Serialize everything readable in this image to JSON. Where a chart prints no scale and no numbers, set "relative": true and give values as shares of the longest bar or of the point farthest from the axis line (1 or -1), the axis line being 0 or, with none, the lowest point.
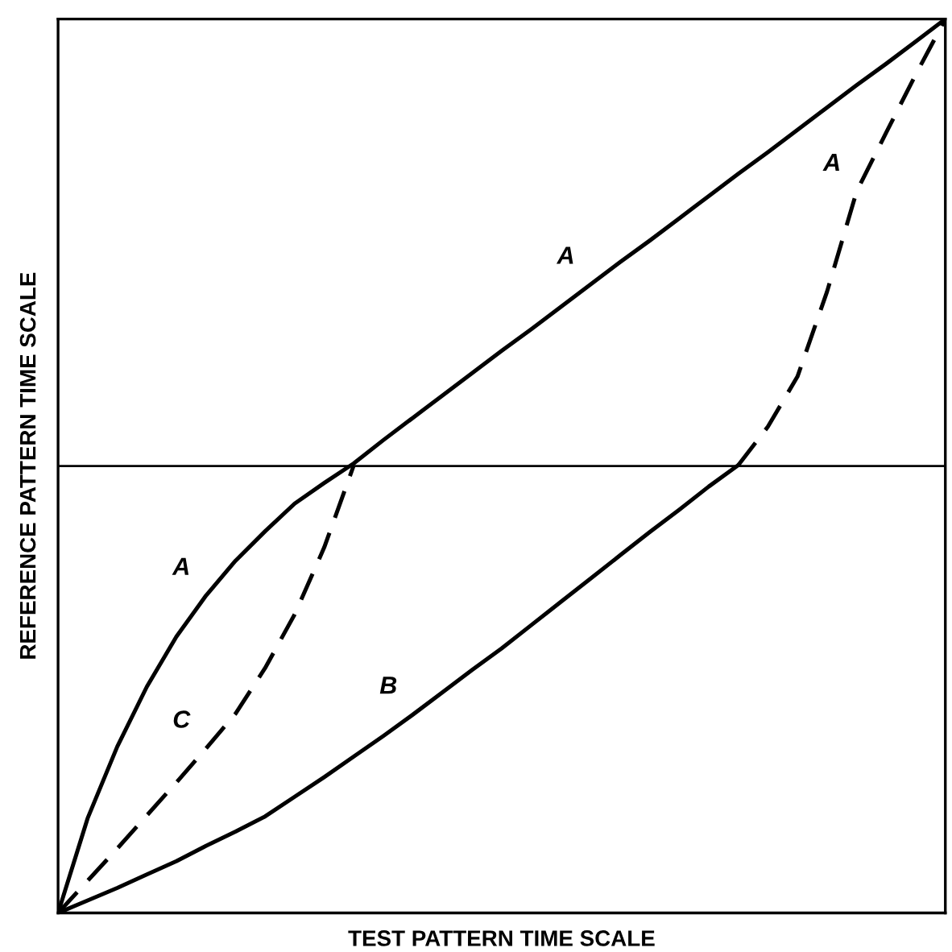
{
  "chart_data": {
    "type": "line",
    "relative": true,
    "xlabel": "TEST PATTERN TIME SCALE",
    "ylabel": "REFERENCE PATTERN TIME SCALE",
    "legend": false,
    "marker": "none",
    "categories": [
      null,
      null,
      null,
      null,
      null,
      null,
      null,
      null,
      null,
      null,
      null,
      null,
      null,
      null,
      null,
      null,
      null,
      null,
      null,
      null,
      null,
      null,
      null,
      null,
      null,
      null,
      null,
      null,
      null,
      null,
      null
    ],
    "series": [
      {
        "name": "A",
        "color": "#000000",
        "line_style": "solid",
        "values": [
          0,
          0.106,
          0.186,
          0.253,
          0.309,
          0.355,
          0.394,
          0.427,
          0.458,
          0.481,
          0.503,
          0.529,
          0.554,
          0.579,
          0.604,
          0.629,
          0.653,
          0.678,
          0.703,
          0.728,
          0.752,
          0.777,
          0.802,
          0.827,
          0.851,
          0.876,
          0.901,
          0.926,
          0.95,
          0.975,
          1
        ]
      },
      {
        "name": "A",
        "color": "#000000",
        "line_style": "dashed",
        "values": [
          null,
          null,
          null,
          null,
          null,
          null,
          null,
          null,
          null,
          null,
          null,
          null,
          null,
          null,
          null,
          null,
          null,
          null,
          null,
          null,
          null,
          null,
          null,
          0.501,
          0.544,
          0.6,
          0.695,
          0.807,
          0.873,
          0.938,
          1
        ]
      },
      {
        "name": "C",
        "color": "#000000",
        "line_style": "dashed",
        "values": [
          0,
          0.036,
          0.072,
          0.109,
          0.146,
          0.184,
          0.223,
          0.274,
          0.334,
          0.409,
          0.501,
          null,
          null,
          null,
          null,
          null,
          null,
          null,
          null,
          null,
          null,
          null,
          null,
          null,
          null,
          null,
          null,
          null,
          null,
          null,
          null
        ]
      },
      {
        "name": "B",
        "color": "#000000",
        "line_style": "solid",
        "values": [
          0,
          0.014,
          0.028,
          0.043,
          0.058,
          0.075,
          0.091,
          0.108,
          0.13,
          0.152,
          0.175,
          0.198,
          0.222,
          0.247,
          0.272,
          0.296,
          0.322,
          0.348,
          0.374,
          0.4,
          0.426,
          0.451,
          0.477,
          0.501,
          null,
          null,
          null,
          null,
          null,
          null,
          null
        ]
      }
    ],
    "ref_lines": [
      {
        "axis": "y",
        "value": 0.5,
        "color": "#000000",
        "line_style": "solid"
      }
    ]
  }
}
